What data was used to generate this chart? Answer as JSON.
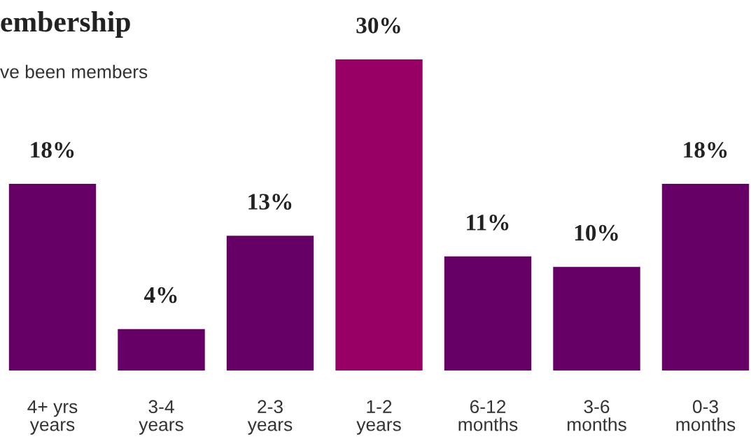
{
  "chart_data": {
    "type": "bar",
    "title": "embership",
    "subtitle": "ve been members",
    "categories": [
      "4+ yrs\nyears",
      "3-4\nyears",
      "2-3\nyears",
      "1-2\nyears",
      "6-12\nmonths",
      "3-6\nmonths",
      "0-3\nmonths"
    ],
    "values": [
      18,
      4,
      13,
      30,
      11,
      10,
      18
    ],
    "value_labels": [
      "18%",
      "4%",
      "13%",
      "30%",
      "11%",
      "10%",
      "18%"
    ],
    "colors": [
      "#660066",
      "#660066",
      "#660066",
      "#990066",
      "#660066",
      "#660066",
      "#660066"
    ],
    "grid": false,
    "legend": false
  }
}
